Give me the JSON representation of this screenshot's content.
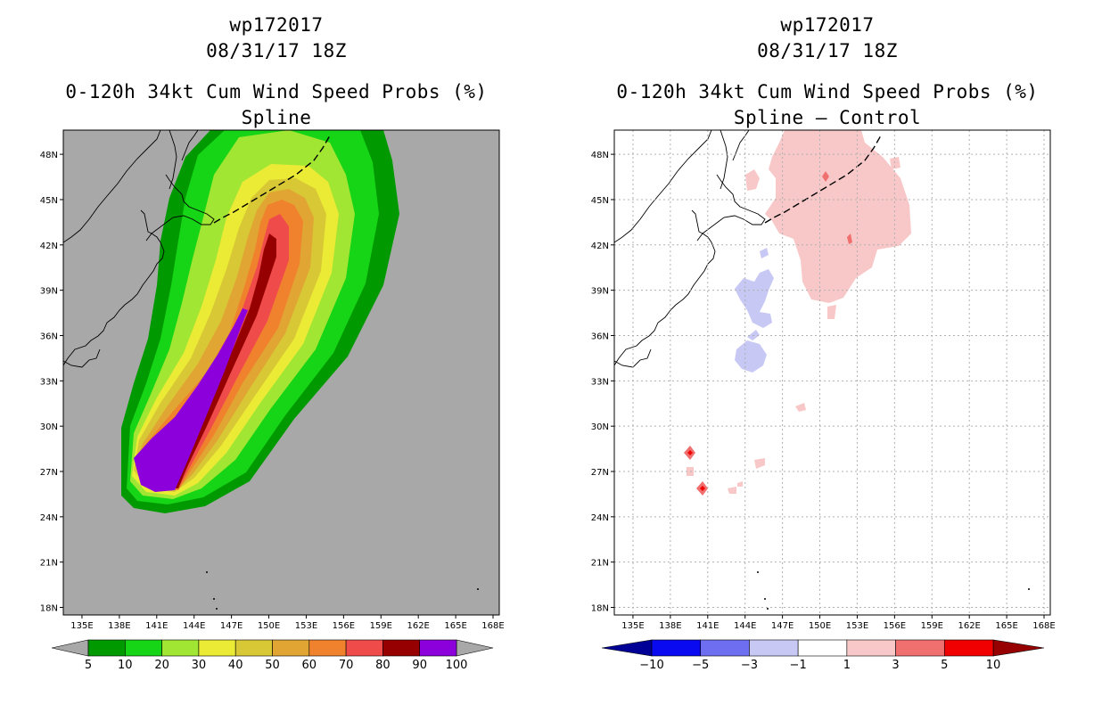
{
  "left_panel": {
    "storm_id": "wp172017",
    "datetime": "08/31/17 18Z",
    "product": "0-120h 34kt Cum Wind Speed Probs (%)",
    "subtitle": "Spline"
  },
  "right_panel": {
    "storm_id": "wp172017",
    "datetime": "08/31/17 18Z",
    "product": "0-120h 34kt Cum Wind Speed Probs (%)",
    "subtitle": "Spline – Control"
  },
  "chart_data": [
    {
      "type": "heatmap",
      "title": "0-120h 34kt Cum Wind Speed Probs (%) — Spline",
      "x_ticks": [
        "135E",
        "138E",
        "141E",
        "144E",
        "147E",
        "150E",
        "153E",
        "156E",
        "159E",
        "162E",
        "165E",
        "168E"
      ],
      "y_ticks": [
        "48N",
        "45N",
        "42N",
        "39N",
        "36N",
        "33N",
        "30N",
        "27N",
        "24N",
        "21N",
        "18N"
      ],
      "xlim": [
        133.5,
        168.5
      ],
      "ylim": [
        17.5,
        49.6
      ],
      "colorbar": {
        "labels": [
          "5",
          "10",
          "20",
          "30",
          "40",
          "50",
          "60",
          "70",
          "80",
          "90",
          "100"
        ],
        "colors": [
          "#009a00",
          "#16d416",
          "#a0e632",
          "#ebeb35",
          "#d8c835",
          "#e0a532",
          "#f0822d",
          "#f04b4b",
          "#960000",
          "#8c00dc"
        ]
      },
      "background": "#a8a8a8",
      "contour_levels": [
        5,
        10,
        20,
        30,
        40,
        50,
        60,
        70,
        80,
        90,
        100
      ]
    },
    {
      "type": "heatmap",
      "title": "0-120h 34kt Cum Wind Speed Probs (%) — Spline – Control",
      "x_ticks": [
        "135E",
        "138E",
        "141E",
        "144E",
        "147E",
        "150E",
        "153E",
        "156E",
        "159E",
        "162E",
        "165E",
        "168E"
      ],
      "y_ticks": [
        "48N",
        "45N",
        "42N",
        "39N",
        "36N",
        "33N",
        "30N",
        "27N",
        "24N",
        "21N",
        "18N"
      ],
      "xlim": [
        133.5,
        168.5
      ],
      "ylim": [
        17.5,
        49.6
      ],
      "colorbar": {
        "labels": [
          "−10",
          "−5",
          "−3",
          "−1",
          "1",
          "3",
          "5",
          "10"
        ],
        "colors": [
          "#000096",
          "#0a0af0",
          "#6e6ef0",
          "#c8c8f5",
          "#ffffff",
          "#f8c8c8",
          "#f07070",
          "#f00000",
          "#960000"
        ]
      },
      "background": "#ffffff",
      "contour_levels": [
        -10,
        -5,
        -3,
        -1,
        1,
        3,
        5,
        10
      ]
    }
  ]
}
